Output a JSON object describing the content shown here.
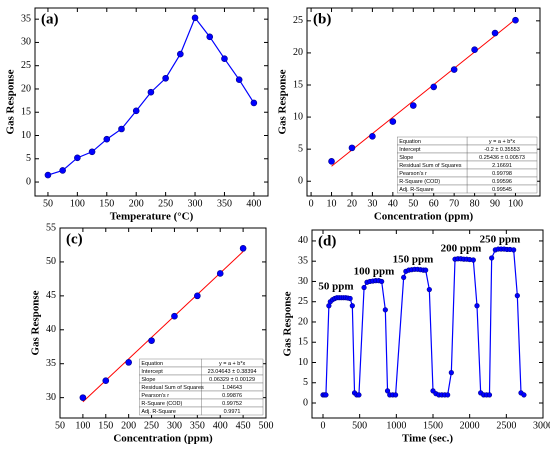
{
  "chart_data": [
    {
      "type": "line",
      "label": "(a)",
      "x_label": "Temperature (°C)",
      "y_label": "Gas Response",
      "x": [
        50,
        75,
        100,
        125,
        150,
        175,
        200,
        225,
        250,
        275,
        300,
        325,
        350,
        375,
        400
      ],
      "series": [
        {
          "color": "#0000ff",
          "values": [
            1.5,
            2.5,
            5.2,
            6.5,
            9.2,
            11.4,
            15.3,
            19.3,
            22.3,
            27.5,
            35.3,
            31.2,
            26.5,
            22.0,
            17.0
          ]
        }
      ],
      "xlim": [
        28,
        424
      ],
      "xticks": [
        50,
        100,
        150,
        200,
        250,
        300,
        350,
        400
      ],
      "ylim": [
        -3,
        37.4
      ],
      "yticks": [
        0,
        5,
        10,
        15,
        20,
        25,
        30,
        35
      ]
    },
    {
      "type": "scatter",
      "label": "(b)",
      "x_label": "Concentration (ppm)",
      "y_label": "Gas Response",
      "x": [
        10,
        20,
        30,
        40,
        50,
        60,
        70,
        80,
        90,
        100
      ],
      "series": [
        {
          "color": "#0000ff",
          "values": [
            3.1,
            5.2,
            7.0,
            9.3,
            11.8,
            14.7,
            17.4,
            20.5,
            23.1,
            25.1
          ]
        }
      ],
      "fit": {
        "color": "#ff0000",
        "x": [
          10,
          100
        ],
        "values": [
          2.34,
          25.24
        ]
      },
      "table": {
        "rows": [
          [
            "Equation",
            "y = a + b*x"
          ],
          [
            "Intercept",
            "-0.2 ± 0.35553"
          ],
          [
            "Slope",
            "0.25436 ± 0.00573"
          ],
          [
            "Residual Sum of Squares",
            "2.16691"
          ],
          [
            "Pearson's r",
            "0.99798"
          ],
          [
            "R-Square (COD)",
            "0.99596"
          ],
          [
            "Adj. R-Square",
            "0.99545"
          ]
        ]
      },
      "xlim": [
        -2,
        112
      ],
      "xticks": [
        0,
        10,
        20,
        30,
        40,
        50,
        60,
        70,
        80,
        90,
        100
      ],
      "ylim": [
        -2.3,
        27
      ],
      "yticks": [
        0,
        5,
        10,
        15,
        20,
        25
      ]
    },
    {
      "type": "scatter",
      "label": "(c)",
      "x_label": "Concentration (ppm)",
      "y_label": "Gas Response",
      "x": [
        100,
        150,
        200,
        250,
        300,
        350,
        400,
        450
      ],
      "series": [
        {
          "color": "#0000ff",
          "values": [
            30.0,
            32.5,
            35.2,
            38.4,
            42.0,
            45.0,
            48.3,
            52.0
          ]
        }
      ],
      "fit": {
        "color": "#ff0000",
        "x": [
          100,
          450
        ],
        "values": [
          29.38,
          51.53
        ]
      },
      "table": {
        "rows": [
          [
            "Equation",
            "y = a + b*x"
          ],
          [
            "Intercept",
            "23.04643 ± 0.38394"
          ],
          [
            "Slope",
            "0.06329 ± 0.00129"
          ],
          [
            "Residual Sum of Squares",
            "1.04643"
          ],
          [
            "Pearson's r",
            "0.99876"
          ],
          [
            "R-Square (COD)",
            "0.99752"
          ],
          [
            "Adj. R-Square",
            "0.9971"
          ]
        ]
      },
      "xlim": [
        50,
        500
      ],
      "xticks": [
        50,
        100,
        150,
        200,
        250,
        300,
        350,
        400,
        450,
        500
      ],
      "ylim": [
        27,
        55
      ],
      "yticks": [
        30,
        35,
        40,
        45,
        50,
        55
      ]
    },
    {
      "type": "line",
      "label": "(d)",
      "x_label": "Time (sec.)",
      "y_label": "Gas Response",
      "x": [
        0,
        20,
        40,
        80,
        100,
        130,
        160,
        190,
        220,
        250,
        280,
        310,
        340,
        370,
        400,
        430,
        460,
        490,
        560,
        600,
        640,
        680,
        720,
        760,
        800,
        850,
        880,
        910,
        950,
        990,
        1100,
        1130,
        1170,
        1210,
        1250,
        1290,
        1330,
        1370,
        1400,
        1450,
        1500,
        1540,
        1580,
        1620,
        1660,
        1700,
        1750,
        1800,
        1840,
        1880,
        1920,
        1960,
        2000,
        2050,
        2100,
        2150,
        2190,
        2230,
        2270,
        2300,
        2350,
        2390,
        2430,
        2470,
        2510,
        2550,
        2600,
        2650,
        2700,
        2740
      ],
      "series": [
        {
          "color": "#0000ff",
          "values": [
            2,
            2,
            2,
            24,
            25,
            25.5,
            25.8,
            26,
            26,
            26,
            26,
            26,
            25.9,
            25.8,
            24,
            2.5,
            2,
            2,
            28.5,
            29.8,
            30,
            30.1,
            30.2,
            30.2,
            30,
            23,
            3,
            2,
            2,
            2,
            31,
            32.5,
            32.8,
            32.9,
            33,
            33,
            32.9,
            32.8,
            32.8,
            28,
            3,
            2.3,
            2,
            2,
            2,
            2,
            7.5,
            35.5,
            35.6,
            35.6,
            35.5,
            35.5,
            35.4,
            35.3,
            24,
            2.5,
            2,
            2,
            2,
            35.8,
            37.8,
            38,
            38,
            38,
            37.9,
            37.9,
            37.8,
            26.5,
            2.5,
            2
          ]
        }
      ],
      "annotations": [
        "50 ppm",
        "100 ppm",
        "150 ppm",
        "200 ppm",
        "250 ppm"
      ],
      "xlim": [
        -150,
        3000
      ],
      "xticks": [
        0,
        500,
        1000,
        1500,
        2000,
        2500,
        3000
      ],
      "ylim": [
        -3.7,
        42.7
      ],
      "yticks": [
        0,
        5,
        10,
        15,
        20,
        25,
        30,
        35,
        40
      ]
    }
  ]
}
